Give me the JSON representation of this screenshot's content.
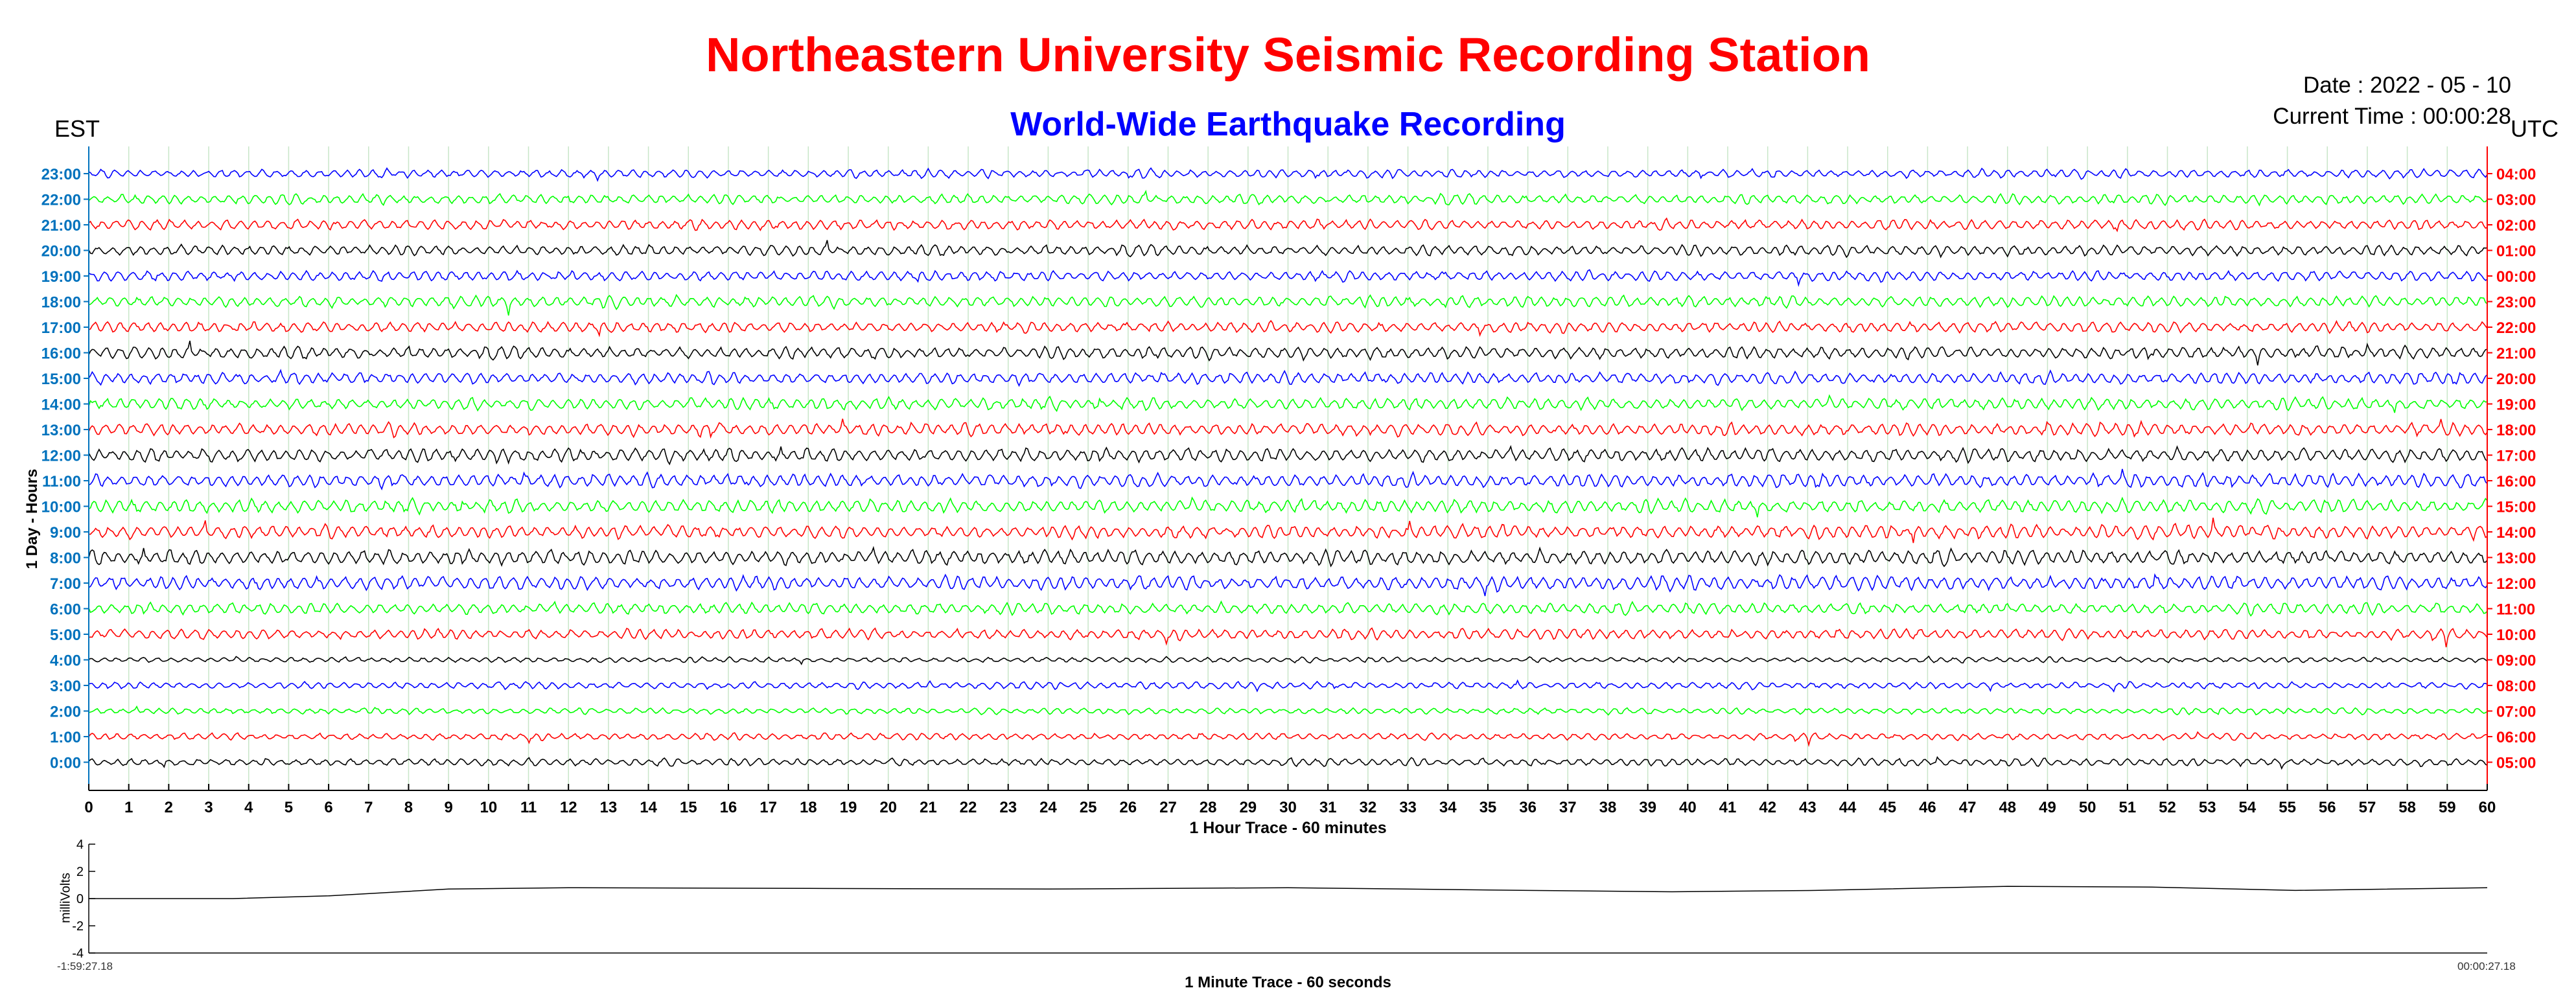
{
  "header": {
    "title": "Northeastern University Seismic Recording Station",
    "subtitle": "World-Wide Earthquake Recording",
    "date_line": "Date : 2022 - 05 - 10",
    "time_line": "Current Time : 00:00:28",
    "left_zone": "EST",
    "right_zone": "UTC"
  },
  "colors": {
    "title": "#ff0000",
    "subtitle": "#0000ff",
    "left_ticks": "#0072bd",
    "right_ticks": "#ff0000",
    "traces": [
      "#0000ff",
      "#00ff00",
      "#ff0000",
      "#000000"
    ],
    "grid": "#c8e6c8"
  },
  "chart_data": [
    {
      "type": "line",
      "title": "World-Wide Earthquake Recording",
      "xlabel": "1 Hour Trace - 60 minutes",
      "ylabel": "1 Day - Hours",
      "xlim": [
        0,
        60
      ],
      "x_ticks": [
        0,
        1,
        2,
        3,
        4,
        5,
        6,
        7,
        8,
        9,
        10,
        11,
        12,
        13,
        14,
        15,
        16,
        17,
        18,
        19,
        20,
        21,
        22,
        23,
        24,
        25,
        26,
        27,
        28,
        29,
        30,
        31,
        32,
        33,
        34,
        35,
        36,
        37,
        38,
        39,
        40,
        41,
        42,
        43,
        44,
        45,
        46,
        47,
        48,
        49,
        50,
        51,
        52,
        53,
        54,
        55,
        56,
        57,
        58,
        59,
        60
      ],
      "left_ticks": [
        "23:00",
        "22:00",
        "21:00",
        "20:00",
        "19:00",
        "18:00",
        "17:00",
        "16:00",
        "15:00",
        "14:00",
        "13:00",
        "12:00",
        "11:00",
        "10:00",
        "9:00",
        "8:00",
        "7:00",
        "6:00",
        "5:00",
        "4:00",
        "3:00",
        "2:00",
        "1:00",
        "0:00"
      ],
      "right_ticks": [
        "04:00",
        "03:00",
        "02:00",
        "01:00",
        "00:00",
        "23:00",
        "22:00",
        "21:00",
        "20:00",
        "19:00",
        "18:00",
        "17:00",
        "16:00",
        "15:00",
        "14:00",
        "13:00",
        "12:00",
        "11:00",
        "10:00",
        "09:00",
        "08:00",
        "07:00",
        "06:00",
        "05:00"
      ],
      "trace_colors_top_to_bottom": [
        "blue",
        "green",
        "red",
        "black",
        "blue",
        "green",
        "red",
        "black",
        "blue",
        "green",
        "red",
        "black",
        "blue",
        "green",
        "red",
        "black",
        "blue",
        "green",
        "red",
        "black",
        "blue",
        "green",
        "red",
        "black"
      ],
      "trace_amplitude_relative": [
        0.55,
        0.65,
        0.7,
        0.7,
        0.7,
        0.75,
        0.75,
        0.8,
        0.8,
        0.8,
        0.85,
        0.9,
        0.9,
        0.9,
        0.9,
        1.0,
        0.95,
        0.75,
        0.7,
        0.35,
        0.45,
        0.4,
        0.45,
        0.5
      ],
      "grid": true
    },
    {
      "type": "line",
      "xlabel": "1 Minute Trace  - 60 seconds",
      "ylabel": "milliVolts",
      "ylim": [
        -4,
        4
      ],
      "y_ticks": [
        "4",
        "2",
        "0",
        "-2",
        "-4"
      ],
      "x_start_label": "-1:59:27.18",
      "x_end_label": "00:00:27.18",
      "x": [
        0,
        0.06,
        0.1,
        0.15,
        0.2,
        0.3,
        0.4,
        0.45,
        0.5,
        0.6,
        0.66,
        0.72,
        0.8,
        0.86,
        0.92,
        1.0
      ],
      "values": [
        0.0,
        0.0,
        0.2,
        0.7,
        0.8,
        0.75,
        0.7,
        0.75,
        0.8,
        0.6,
        0.5,
        0.6,
        0.9,
        0.85,
        0.6,
        0.8
      ],
      "grid": false
    }
  ]
}
